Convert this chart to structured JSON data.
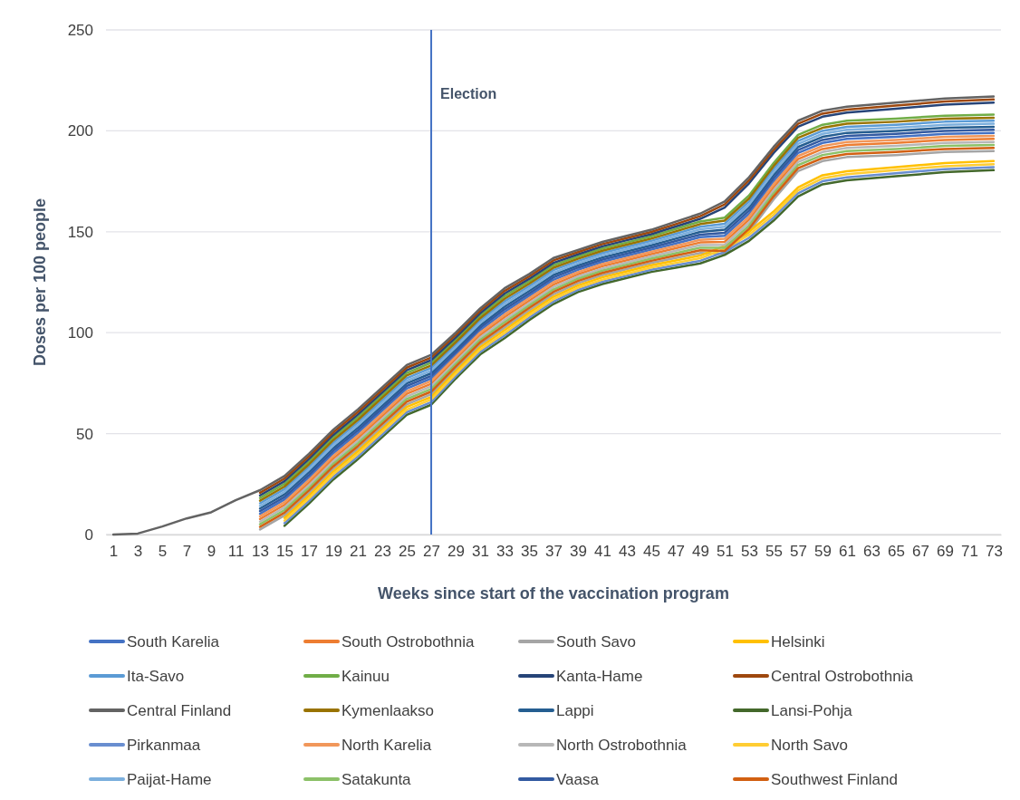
{
  "chart_data": {
    "type": "line",
    "xlabel": "Weeks since start of the vaccination program",
    "ylabel": "Doses per 100 people",
    "x": [
      1,
      3,
      5,
      7,
      9,
      11,
      13,
      15,
      17,
      19,
      21,
      23,
      25,
      27,
      29,
      31,
      33,
      35,
      37,
      39,
      41,
      43,
      45,
      47,
      49,
      51,
      53,
      55,
      57,
      59,
      61,
      65,
      69,
      73
    ],
    "xlim": [
      0.4,
      73.6
    ],
    "xticks": [
      1,
      3,
      5,
      7,
      9,
      11,
      13,
      15,
      17,
      19,
      21,
      23,
      25,
      27,
      29,
      31,
      33,
      35,
      37,
      39,
      41,
      43,
      45,
      47,
      49,
      51,
      53,
      55,
      57,
      59,
      61,
      63,
      65,
      67,
      69,
      71,
      73
    ],
    "ylim": [
      0,
      250
    ],
    "yticks": [
      0,
      50,
      100,
      150,
      200,
      250
    ],
    "grid": "y",
    "legend": "bottom",
    "ref_lines": [
      {
        "axis": "x",
        "value": 27,
        "label": "Election",
        "color": "#4472c4"
      }
    ],
    "series": [
      {
        "name": "South Karelia",
        "color": "#4472c4",
        "values": [
          null,
          null,
          null,
          null,
          null,
          null,
          10.3,
          17.3,
          28.3,
          40.3,
          50.3,
          61.3,
          72.3,
          77.3,
          89.2,
          101.2,
          110.3,
          118.2,
          126.2,
          131.1,
          135.1,
          138.1,
          141.1,
          144.2,
          147.3,
          148,
          159,
          175,
          189,
          194,
          196,
          197,
          198.5,
          199
        ]
      },
      {
        "name": "South Ostrobothnia",
        "color": "#ed7d31",
        "values": [
          null,
          null,
          null,
          null,
          null,
          null,
          7.7,
          14.7,
          25.7,
          37.7,
          47.7,
          58.7,
          69.7,
          74.7,
          86.8,
          98.8,
          107.7,
          115.8,
          123.8,
          128.9,
          132.9,
          135.9,
          138.9,
          141.8,
          144.7,
          145,
          156,
          172,
          186,
          191,
          193,
          194,
          195.5,
          196
        ]
      },
      {
        "name": "South Savo",
        "color": "#a5a5a5",
        "values": [
          null,
          null,
          null,
          null,
          null,
          null,
          2.5,
          9.5,
          20.5,
          32.5,
          42.5,
          53.5,
          64.5,
          69.5,
          82,
          94,
          102.5,
          111,
          119,
          124.5,
          128.5,
          131.5,
          134.5,
          137,
          139.5,
          139,
          150,
          166,
          180,
          185,
          187,
          188,
          189.5,
          190
        ]
      },
      {
        "name": "Helsinki",
        "color": "#ffc000",
        "values": [
          null,
          null,
          null,
          null,
          null,
          null,
          null,
          8.2,
          19.2,
          31.2,
          41.2,
          52.2,
          63.2,
          68.2,
          80.8,
          92.8,
          101.2,
          109.8,
          117.8,
          123.4,
          127.4,
          130.4,
          133.4,
          135.8,
          138.2,
          143,
          150,
          160,
          172,
          178,
          180,
          182,
          184,
          185
        ]
      },
      {
        "name": "Ita-Savo",
        "color": "#5b9bd5",
        "values": [
          null,
          null,
          null,
          null,
          null,
          null,
          15.5,
          22.5,
          33.5,
          45.5,
          55.5,
          66.5,
          77.5,
          82.5,
          94,
          106,
          115.5,
          123,
          131,
          135.5,
          139.5,
          142.5,
          145.5,
          149,
          152.5,
          154,
          165,
          181,
          195,
          200,
          202,
          203,
          204.5,
          205
        ]
      },
      {
        "name": "Kainuu",
        "color": "#70ad47",
        "values": [
          null,
          null,
          null,
          null,
          null,
          null,
          18.1,
          25.1,
          36.1,
          48.1,
          58.1,
          69.1,
          80.1,
          85.1,
          96.4,
          108.4,
          118.1,
          125.4,
          133.4,
          137.7,
          141.7,
          144.7,
          147.7,
          151.4,
          155.1,
          157,
          168,
          184,
          198,
          203,
          205,
          206,
          207.5,
          208
        ]
      },
      {
        "name": "Kanta-Hame",
        "color": "#264478",
        "values": [
          null,
          null,
          null,
          null,
          null,
          null,
          19.4,
          26.4,
          37.4,
          49.4,
          59.4,
          70.4,
          81.4,
          86.4,
          97.6,
          109.6,
          119.4,
          126.6,
          134.6,
          138.8,
          142.8,
          145.8,
          148.8,
          152.6,
          156.4,
          162,
          174,
          189,
          202,
          207,
          209,
          211,
          213,
          214
        ]
      },
      {
        "name": "Central Ostrobothnia",
        "color": "#9e480e",
        "values": [
          null,
          null,
          null,
          null,
          null,
          null,
          20.7,
          27.7,
          38.7,
          50.7,
          60.7,
          71.7,
          82.7,
          87.7,
          98.8,
          110.8,
          120.7,
          127.8,
          135.8,
          139.9,
          143.9,
          146.9,
          149.9,
          153.8,
          157.7,
          163.5,
          175.5,
          190.5,
          203.5,
          208.5,
          210.5,
          212.5,
          214.5,
          215.5
        ]
      },
      {
        "name": "Central Finland",
        "color": "#636363",
        "values": [
          0,
          0.5,
          4,
          8,
          11,
          17,
          22,
          29,
          40,
          52,
          62,
          73,
          84,
          89,
          100,
          112,
          122,
          129,
          137,
          141,
          145,
          148,
          151,
          155,
          159,
          165,
          177,
          192,
          205,
          210,
          212,
          214,
          216,
          217
        ]
      },
      {
        "name": "Kymenlaakso",
        "color": "#997300",
        "values": [
          null,
          null,
          null,
          null,
          null,
          null,
          16.8,
          23.8,
          34.8,
          46.8,
          56.8,
          67.8,
          78.8,
          83.8,
          95.2,
          107.2,
          116.8,
          124.2,
          132.2,
          136.6,
          140.6,
          143.6,
          146.6,
          150.2,
          153.8,
          155.5,
          166.5,
          182.5,
          196.5,
          201.5,
          203.5,
          204.5,
          206,
          206.5
        ]
      },
      {
        "name": "Lappi",
        "color": "#255e91",
        "values": [
          null,
          null,
          null,
          null,
          null,
          null,
          12.9,
          19.9,
          30.9,
          42.9,
          52.9,
          63.9,
          74.9,
          79.9,
          91.6,
          103.6,
          112.9,
          120.6,
          128.6,
          133.3,
          137.3,
          140.3,
          143.3,
          146.6,
          149.9,
          151,
          162,
          178,
          192,
          197,
          199,
          200,
          201.5,
          202
        ]
      },
      {
        "name": "Lansi-Pohja",
        "color": "#43682b",
        "values": [
          null,
          null,
          null,
          null,
          null,
          null,
          null,
          4.3,
          15.3,
          27.3,
          37.3,
          48.3,
          59.3,
          64.3,
          77.2,
          89.2,
          97.3,
          106.2,
          114.2,
          120.1,
          124.1,
          127.1,
          130.1,
          132.2,
          134.3,
          138.5,
          145.5,
          155.5,
          167.5,
          173.5,
          175.5,
          177.5,
          179.5,
          180.5
        ]
      },
      {
        "name": "Pirkanmaa",
        "color": "#698ed0",
        "values": [
          null,
          null,
          null,
          null,
          null,
          null,
          null,
          5.6,
          16.6,
          28.6,
          38.6,
          49.6,
          60.6,
          65.6,
          78.4,
          90.4,
          98.6,
          107.4,
          115.4,
          121.2,
          125.2,
          128.2,
          131.2,
          133.4,
          135.6,
          140,
          147,
          157,
          169,
          175,
          177,
          179,
          181,
          182
        ]
      },
      {
        "name": "North Karelia",
        "color": "#f1975a",
        "values": [
          null,
          null,
          null,
          null,
          null,
          null,
          9,
          16,
          27,
          39,
          49,
          60,
          71,
          76,
          88,
          100,
          109,
          117,
          125,
          130,
          134,
          137,
          140,
          143,
          146,
          146.5,
          157.5,
          173.5,
          187.5,
          192.5,
          194.5,
          195.5,
          197,
          197.5
        ]
      },
      {
        "name": "North Ostrobothnia",
        "color": "#b7b7b7",
        "values": [
          null,
          null,
          null,
          null,
          null,
          null,
          6.4,
          13.4,
          24.4,
          36.4,
          46.4,
          57.4,
          68.4,
          73.4,
          85.6,
          97.6,
          106.4,
          114.6,
          122.6,
          127.8,
          131.8,
          134.8,
          137.8,
          140.6,
          143.4,
          143.5,
          154.5,
          170.5,
          184.5,
          189.5,
          191.5,
          192.5,
          194,
          194.5
        ]
      },
      {
        "name": "North Savo",
        "color": "#ffcd33",
        "values": [
          null,
          null,
          null,
          null,
          null,
          null,
          null,
          6.9,
          17.9,
          29.9,
          39.9,
          50.9,
          61.9,
          66.9,
          79.6,
          91.6,
          99.9,
          108.6,
          116.6,
          122.3,
          126.3,
          129.3,
          132.3,
          134.6,
          136.9,
          141.5,
          148.5,
          158.5,
          170.5,
          176.5,
          178.5,
          180.5,
          182.5,
          183.5
        ]
      },
      {
        "name": "Paijat-Hame",
        "color": "#7cafdd",
        "values": [
          null,
          null,
          null,
          null,
          null,
          null,
          14.2,
          21.2,
          32.2,
          44.2,
          54.2,
          65.2,
          76.2,
          81.2,
          92.8,
          104.8,
          114.2,
          121.8,
          129.8,
          134.4,
          138.4,
          141.4,
          144.4,
          147.8,
          151.2,
          152.5,
          163.5,
          179.5,
          193.5,
          198.5,
          200.5,
          201.5,
          203,
          203.5
        ]
      },
      {
        "name": "Satakunta",
        "color": "#8cc168",
        "values": [
          null,
          null,
          null,
          null,
          null,
          null,
          5.1,
          12.1,
          23.1,
          35.1,
          45.1,
          56.1,
          67.1,
          72.1,
          84.4,
          96.4,
          105.1,
          113.4,
          121.4,
          126.7,
          130.7,
          133.7,
          136.7,
          139.4,
          142.1,
          142,
          153,
          169,
          183,
          188,
          190,
          191,
          192.5,
          193
        ]
      },
      {
        "name": "Vaasa",
        "color": "#335aa1",
        "values": [
          null,
          null,
          null,
          null,
          null,
          null,
          11.6,
          18.6,
          29.6,
          41.6,
          51.6,
          62.6,
          73.6,
          78.6,
          90.4,
          102.4,
          111.6,
          119.4,
          127.4,
          132.2,
          136.2,
          139.2,
          142.2,
          145.4,
          148.6,
          149.5,
          160.5,
          176.5,
          190.5,
          195.5,
          197.5,
          198.5,
          200,
          200.5
        ]
      },
      {
        "name": "Southwest Finland",
        "color": "#d26012",
        "values": [
          null,
          null,
          null,
          null,
          null,
          null,
          3.8,
          10.8,
          21.8,
          33.8,
          43.8,
          54.8,
          65.8,
          70.8,
          83.2,
          95.2,
          103.8,
          112.2,
          120.2,
          125.6,
          129.6,
          132.6,
          135.6,
          138.2,
          140.8,
          140.5,
          151.5,
          167.5,
          181.5,
          186.5,
          188.5,
          189.5,
          191,
          191.5
        ]
      }
    ]
  }
}
